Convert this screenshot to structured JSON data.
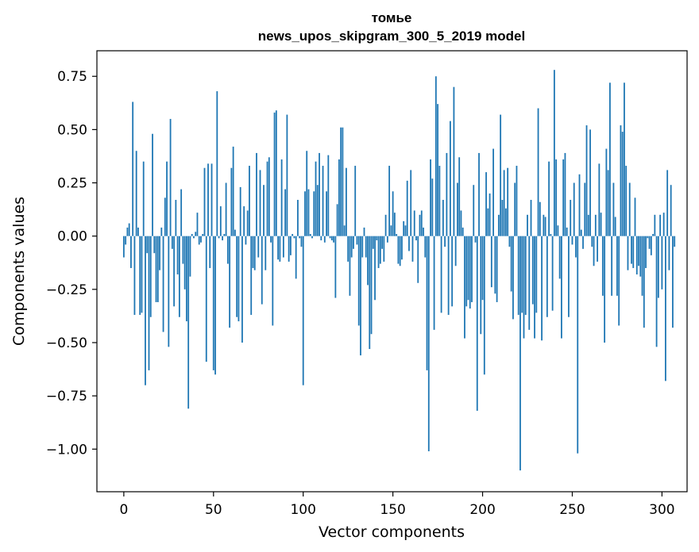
{
  "chart_data": {
    "type": "bar",
    "title": "томье",
    "subtitle": "news_upos_skipgram_300_5_2019 model",
    "xlabel": "Vector components",
    "ylabel": "Components values",
    "xlim": [
      -15,
      314
    ],
    "ylim": [
      -1.2,
      0.87
    ],
    "xticks": [
      0,
      50,
      100,
      150,
      200,
      250,
      300
    ],
    "yticks": [
      -1.0,
      -0.75,
      -0.5,
      -0.25,
      0.0,
      0.25,
      0.5,
      0.75
    ],
    "ytick_labels": [
      "−1.00",
      "−0.75",
      "−0.50",
      "−0.25",
      "0.00",
      "0.25",
      "0.50",
      "0.75"
    ],
    "bar_color": "#1f77b4",
    "values": [
      -0.1,
      -0.04,
      0.04,
      0.06,
      -0.15,
      0.63,
      -0.37,
      0.4,
      0.04,
      -0.37,
      -0.36,
      0.35,
      -0.7,
      -0.08,
      -0.63,
      -0.38,
      0.48,
      -0.08,
      -0.31,
      -0.31,
      -0.16,
      0.04,
      -0.45,
      0.18,
      0.35,
      -0.52,
      0.55,
      -0.06,
      -0.33,
      0.17,
      -0.18,
      -0.38,
      0.22,
      -0.13,
      -0.25,
      -0.4,
      -0.81,
      -0.19,
      0.01,
      -0.01,
      0.02,
      0.11,
      -0.04,
      -0.03,
      0.01,
      0.32,
      -0.59,
      0.34,
      -0.15,
      0.34,
      -0.63,
      -0.65,
      0.68,
      -0.01,
      0.14,
      -0.02,
      0.01,
      0.25,
      -0.13,
      -0.43,
      0.32,
      0.42,
      0.03,
      -0.38,
      -0.4,
      0.23,
      -0.5,
      0.14,
      -0.04,
      0.12,
      0.33,
      -0.37,
      -0.15,
      -0.16,
      0.39,
      -0.1,
      0.31,
      -0.32,
      0.24,
      -0.16,
      0.35,
      0.37,
      -0.03,
      -0.42,
      0.58,
      0.59,
      -0.11,
      -0.12,
      0.36,
      -0.1,
      0.22,
      0.57,
      -0.12,
      -0.09,
      0.01,
      -0.01,
      -0.2,
      0.17,
      -0.01,
      -0.05,
      -0.7,
      0.21,
      0.4,
      0.22,
      0.01,
      -0.01,
      0.21,
      0.35,
      0.24,
      0.39,
      -0.02,
      0.33,
      -0.03,
      0.21,
      0.38,
      -0.01,
      -0.02,
      -0.03,
      -0.29,
      0.15,
      0.36,
      0.51,
      0.51,
      0.05,
      0.32,
      -0.12,
      -0.28,
      -0.1,
      -0.06,
      0.33,
      -0.04,
      -0.42,
      -0.56,
      -0.1,
      0.04,
      -0.1,
      -0.23,
      -0.53,
      -0.46,
      -0.06,
      -0.3,
      -0.02,
      -0.15,
      -0.13,
      -0.06,
      -0.12,
      0.1,
      -0.03,
      0.33,
      0.05,
      0.21,
      0.11,
      0.01,
      -0.13,
      -0.14,
      -0.11,
      0.07,
      0.05,
      0.26,
      -0.07,
      0.31,
      -0.12,
      0.12,
      -0.02,
      -0.22,
      0.1,
      0.12,
      0.04,
      -0.1,
      -0.63,
      -1.01,
      0.36,
      0.27,
      -0.44,
      0.75,
      0.62,
      0.33,
      -0.36,
      0.17,
      -0.05,
      0.39,
      -0.37,
      0.54,
      -0.33,
      0.7,
      -0.14,
      0.25,
      0.37,
      0.12,
      0.04,
      -0.48,
      -0.33,
      -0.3,
      -0.34,
      -0.31,
      0.24,
      -0.03,
      -0.82,
      0.39,
      -0.46,
      -0.3,
      -0.65,
      0.3,
      0.13,
      0.2,
      -0.24,
      0.41,
      -0.27,
      -0.31,
      0.1,
      0.57,
      0.17,
      0.31,
      0.13,
      0.32,
      -0.05,
      -0.26,
      -0.39,
      0.25,
      0.33,
      -0.37,
      -1.1,
      -0.36,
      -0.48,
      -0.37,
      0.1,
      -0.44,
      0.17,
      -0.32,
      -0.48,
      -0.36,
      0.6,
      0.16,
      -0.49,
      0.1,
      0.09,
      -0.38,
      0.35,
      0.01,
      -0.35,
      0.78,
      0.36,
      0.05,
      -0.2,
      -0.48,
      0.36,
      0.39,
      0.04,
      -0.38,
      0.17,
      -0.04,
      0.25,
      -0.1,
      -1.02,
      0.29,
      0.03,
      -0.06,
      0.25,
      0.52,
      0.1,
      0.5,
      -0.05,
      -0.14,
      0.1,
      -0.12,
      0.34,
      0.11,
      -0.28,
      -0.5,
      0.41,
      0.31,
      0.72,
      -0.28,
      0.25,
      0.09,
      -0.28,
      -0.42,
      0.52,
      0.49,
      0.72,
      0.33,
      -0.16,
      0.25,
      -0.13,
      -0.15,
      0.18,
      -0.18,
      -0.14,
      -0.19,
      -0.28,
      -0.43,
      -0.15,
      -0.01,
      -0.06,
      -0.09,
      0.01,
      0.1,
      -0.52,
      -0.29,
      0.1,
      -0.25,
      0.11,
      -0.68,
      0.31,
      -0.16,
      0.24,
      -0.43,
      -0.05
    ]
  }
}
